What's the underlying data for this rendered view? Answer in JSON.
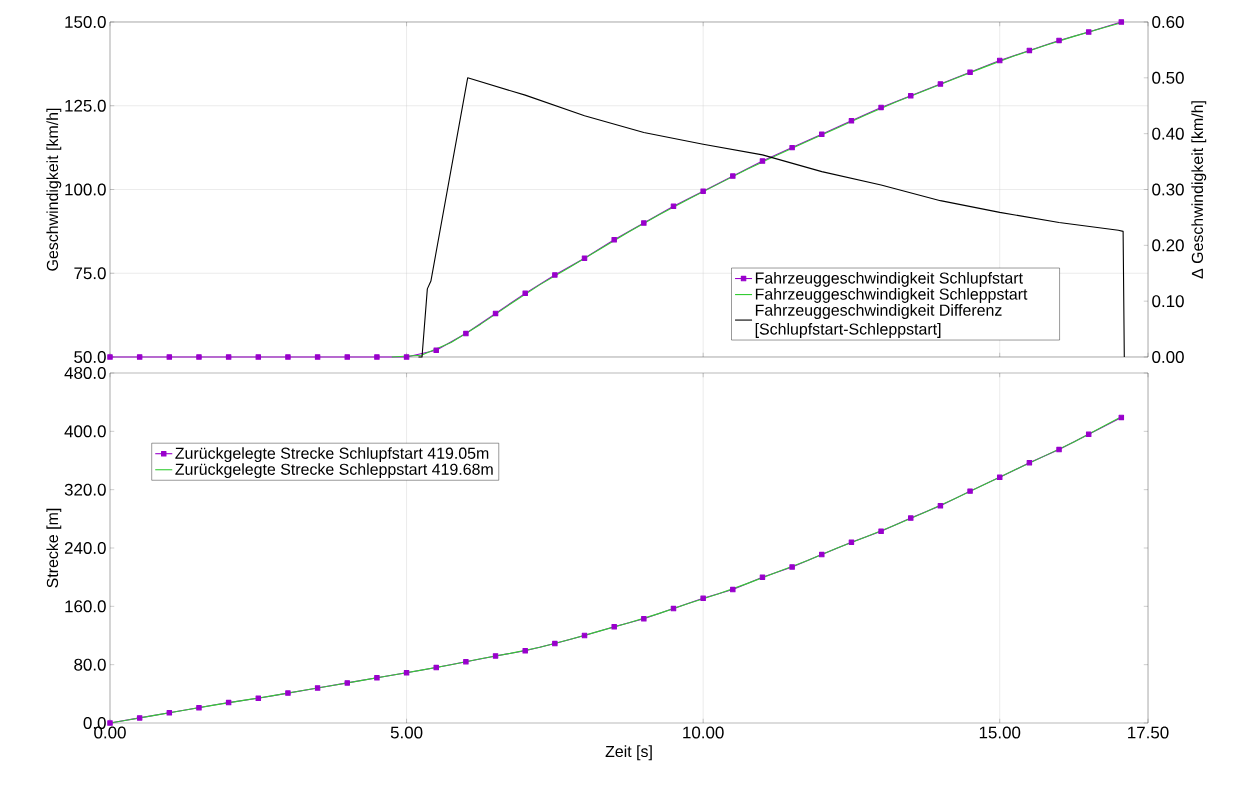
{
  "chart_data": [
    {
      "type": "line",
      "ylabel": "Geschwindigkeit [km/h]",
      "y2label": "Δ Geschwindigkeit [km/h]",
      "xlim": [
        0,
        17.5
      ],
      "xticks": [
        {
          "value": 0,
          "label": null
        },
        {
          "value": 5,
          "label": null
        },
        {
          "value": 10,
          "label": null
        },
        {
          "value": 15,
          "label": null
        },
        {
          "value": 17.5,
          "label": null
        }
      ],
      "ylim": [
        50,
        150
      ],
      "yticks": [
        {
          "value": 50,
          "label": "50.0"
        },
        {
          "value": 75,
          "label": "75.0"
        },
        {
          "value": 100,
          "label": "100.0"
        },
        {
          "value": 125,
          "label": "125.0"
        },
        {
          "value": 150,
          "label": "150.0"
        }
      ],
      "y2lim": [
        0,
        0.6
      ],
      "y2ticks": [
        {
          "value": 0,
          "label": "0.00"
        },
        {
          "value": 0.1,
          "label": "0.10"
        },
        {
          "value": 0.2,
          "label": "0.20"
        },
        {
          "value": 0.3,
          "label": "0.30"
        },
        {
          "value": 0.4,
          "label": "0.40"
        },
        {
          "value": 0.5,
          "label": "0.50"
        },
        {
          "value": 0.6,
          "label": "0.60"
        }
      ],
      "tick_labels": "y",
      "grid": true,
      "legend": "bottom right",
      "series": [
        {
          "name": "Fahrzeuggeschwindigkeit Schlupfstart",
          "color": "#9900cc",
          "marker": "square",
          "x": [
            0,
            0.5,
            1,
            1.5,
            2,
            2.5,
            3,
            3.5,
            4,
            4.5,
            5,
            5.5,
            6,
            6.5,
            7,
            7.5,
            8,
            8.5,
            9,
            9.5,
            10,
            10.5,
            11,
            11.5,
            12,
            12.5,
            13,
            13.5,
            14,
            14.5,
            15,
            15.5,
            16,
            16.5,
            17.05
          ],
          "values": [
            50,
            50,
            50,
            50,
            50,
            50,
            50,
            50,
            50,
            50,
            50,
            52,
            57,
            63,
            69,
            74.5,
            79.5,
            85,
            90,
            95,
            99.5,
            104,
            108.5,
            112.5,
            116.5,
            120.5,
            124.5,
            128,
            131.5,
            135,
            138.5,
            141.5,
            144.5,
            147,
            150
          ]
        },
        {
          "name": "Fahrzeuggeschwindigkeit Schleppstart",
          "color": "#33cc33",
          "marker": "none",
          "x": [
            4.75,
            5.25,
            5.75,
            6.25,
            6.75,
            7.25,
            7.75,
            8.25,
            8.75,
            9.25,
            9.75,
            10.25,
            10.75,
            11.25,
            11.75,
            12.25,
            12.75,
            13.25,
            13.75,
            14.25,
            14.75,
            15.25,
            15.75,
            16.25,
            16.75,
            17.05
          ],
          "values": [
            50,
            50.5,
            54.3,
            59.8,
            65.8,
            71.6,
            76.8,
            82.1,
            87.4,
            92.4,
            97.1,
            101.6,
            106.1,
            110.3,
            114.3,
            118.3,
            122.3,
            126.1,
            129.6,
            133.1,
            136.6,
            139.9,
            142.9,
            145.7,
            148.3,
            149.8
          ]
        },
        {
          "name": "Fahrzeuggeschwindigkeit Differenz [Schlupfstart-Schleppstart]",
          "color": "#000000",
          "marker": "none",
          "axis": "y2",
          "x": [
            5.2,
            5.26,
            5.35,
            5.41,
            6.03,
            7,
            8,
            9,
            10,
            11,
            12,
            13,
            14,
            15,
            16,
            17,
            17.08,
            17.1
          ],
          "values": [
            0,
            0,
            0.122,
            0.136,
            0.5,
            0.469,
            0.432,
            0.402,
            0.381,
            0.362,
            0.332,
            0.308,
            0.28,
            0.259,
            0.241,
            0.227,
            0.225,
            0
          ]
        }
      ]
    },
    {
      "type": "line",
      "xlabel": "Zeit [s]",
      "ylabel": "Strecke [m]",
      "xlim": [
        0,
        17.5
      ],
      "xticks": [
        {
          "value": 0,
          "label": "0.00"
        },
        {
          "value": 5,
          "label": "5.00"
        },
        {
          "value": 10,
          "label": "10.00"
        },
        {
          "value": 15,
          "label": "15.00"
        },
        {
          "value": 17.5,
          "label": "17.50"
        }
      ],
      "ylim": [
        0,
        480
      ],
      "yticks": [
        {
          "value": 0,
          "label": "0.0"
        },
        {
          "value": 80,
          "label": "80.0"
        },
        {
          "value": 160,
          "label": "160.0"
        },
        {
          "value": 240,
          "label": "240.0"
        },
        {
          "value": 320,
          "label": "320.0"
        },
        {
          "value": 400,
          "label": "400.0"
        },
        {
          "value": 480,
          "label": "480.0"
        }
      ],
      "grid": "x",
      "legend": "top left",
      "series": [
        {
          "name": "Zurückgelegte Strecke Schlupfstart 419.05m",
          "color": "#9900cc",
          "marker": "square",
          "x": [
            0,
            0.5,
            1,
            1.5,
            2,
            2.5,
            3,
            3.5,
            4,
            4.5,
            5,
            5.5,
            6,
            6.5,
            7,
            7.5,
            8,
            8.5,
            9,
            9.5,
            10,
            10.5,
            11,
            11.5,
            12,
            12.5,
            13,
            13.5,
            14,
            14.5,
            15,
            15.5,
            16,
            16.5,
            17.05
          ],
          "values": [
            0,
            7,
            14,
            21,
            28,
            34,
            41,
            48,
            55,
            62,
            69,
            76,
            84,
            92,
            99,
            109,
            120,
            132,
            143,
            157,
            171,
            183,
            200,
            214,
            231,
            248,
            263,
            281,
            298,
            318,
            337,
            357,
            375,
            396,
            419
          ]
        },
        {
          "name": "Zurückgelegte Strecke Schleppstart 419.68m",
          "color": "#33cc33",
          "marker": "none",
          "x": [
            0,
            0.25,
            0.75,
            1.25,
            1.75,
            2.25,
            2.75,
            3.25,
            3.75,
            4.25,
            4.75,
            5.25,
            5.75,
            6.25,
            6.75,
            7.25,
            7.75,
            8.25,
            8.75,
            9.25,
            9.75,
            10.25,
            10.75,
            11.25,
            11.75,
            12.25,
            12.75,
            13.25,
            13.75,
            14.25,
            14.75,
            15.25,
            15.75,
            16.25,
            16.75,
            17.05
          ],
          "values": [
            0,
            3.5,
            10.5,
            17.5,
            24.5,
            31,
            37.5,
            44.5,
            51.5,
            58.5,
            65.5,
            72.5,
            80,
            88,
            95.5,
            104,
            114.5,
            126,
            137.5,
            150,
            164,
            177,
            191.5,
            207,
            222.5,
            239.5,
            255.5,
            272,
            289.5,
            308,
            327.5,
            347,
            366,
            385.5,
            407,
            420
          ]
        }
      ]
    }
  ]
}
